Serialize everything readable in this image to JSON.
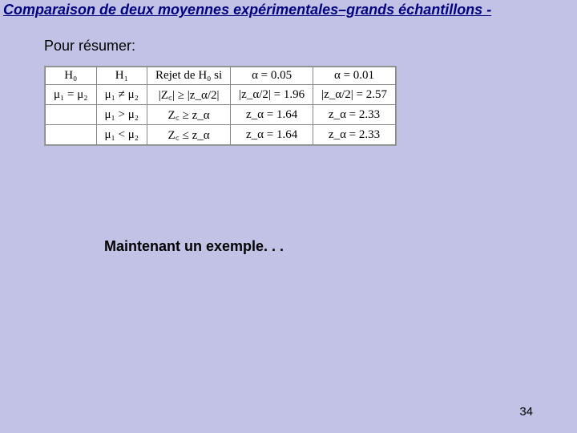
{
  "title": "Comparaison de deux moyennes expérimentales–grands échantillons -",
  "summary_label": "Pour résumer:",
  "table": {
    "headers": [
      "H₀",
      "H₁",
      "Rejet de H₀ si",
      "α = 0.05",
      "α = 0.01"
    ],
    "rows": [
      [
        "μ₁ = μ₂",
        "μ₁ ≠ μ₂",
        "|Z꜀| ≥ |z_α/2|",
        "|z_α/2| = 1.96",
        "|z_α/2| = 2.57"
      ],
      [
        "",
        "μ₁ > μ₂",
        "Z꜀ ≥ z_α",
        "z_α = 1.64",
        "z_α = 2.33"
      ],
      [
        "",
        "μ₁ < μ₂",
        "Z꜀ ≤ z_α",
        "z_α = 1.64",
        "z_α = 2.33"
      ]
    ]
  },
  "example_text": "Maintenant un exemple. . .",
  "page_number": "34"
}
